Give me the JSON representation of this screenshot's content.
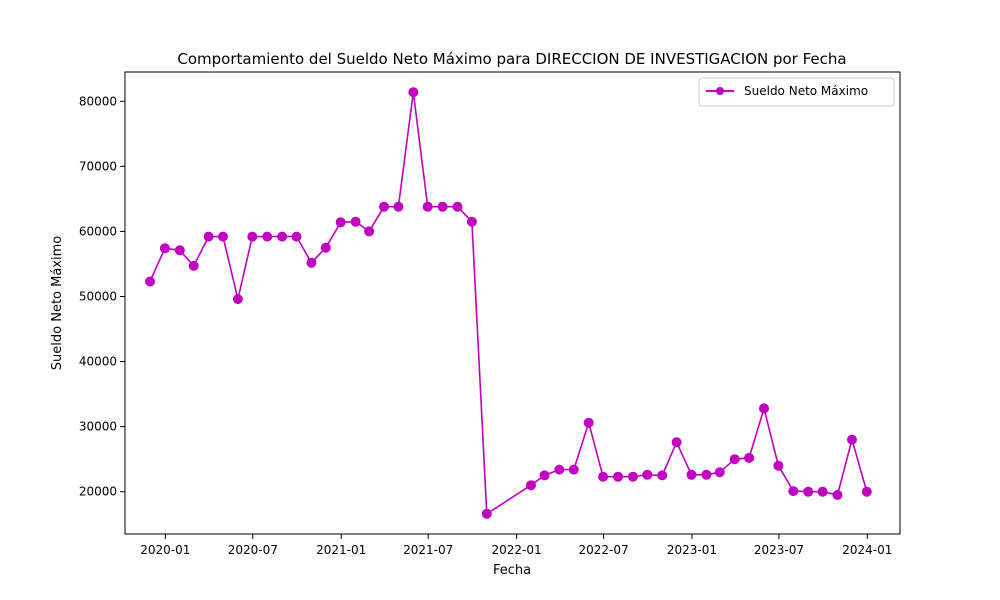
{
  "chart_data": {
    "type": "line",
    "title": "Comportamiento del Sueldo Neto Máximo para DIRECCION DE INVESTIGACION por Fecha",
    "xlabel": "Fecha",
    "ylabel": "Sueldo Neto Máximo",
    "xlim": [
      "2019-10-09",
      "2024-03-09"
    ],
    "ylim": [
      13500,
      84500
    ],
    "x_ticks": [
      "2020-01-01",
      "2020-07-01",
      "2021-01-01",
      "2021-07-01",
      "2022-01-01",
      "2022-07-01",
      "2023-01-01",
      "2023-07-01",
      "2024-01-01"
    ],
    "x_tick_labels": [
      "2020-01",
      "2020-07",
      "2021-01",
      "2021-07",
      "2022-01",
      "2022-07",
      "2023-01",
      "2023-07",
      "2024-01"
    ],
    "y_ticks": [
      20000,
      30000,
      40000,
      50000,
      60000,
      70000,
      80000
    ],
    "y_tick_labels": [
      "20000",
      "30000",
      "40000",
      "50000",
      "60000",
      "70000",
      "80000"
    ],
    "grid": false,
    "legend": {
      "position": "top-right"
    },
    "series": [
      {
        "name": "Sueldo Neto Máximo",
        "color": "#bf00bf",
        "marker": "circle",
        "x": [
          "2019-11-30",
          "2019-12-31",
          "2020-01-31",
          "2020-02-29",
          "2020-03-31",
          "2020-04-30",
          "2020-05-31",
          "2020-06-30",
          "2020-07-31",
          "2020-08-31",
          "2020-09-30",
          "2020-10-31",
          "2020-11-30",
          "2020-12-31",
          "2021-01-31",
          "2021-02-28",
          "2021-03-31",
          "2021-04-30",
          "2021-05-31",
          "2021-06-30",
          "2021-07-31",
          "2021-08-31",
          "2021-09-30",
          "2021-10-31",
          "2022-01-31",
          "2022-02-28",
          "2022-03-31",
          "2022-04-30",
          "2022-05-31",
          "2022-06-30",
          "2022-07-31",
          "2022-08-31",
          "2022-09-30",
          "2022-10-31",
          "2022-11-30",
          "2022-12-31",
          "2023-01-31",
          "2023-02-28",
          "2023-03-31",
          "2023-04-30",
          "2023-05-31",
          "2023-06-30",
          "2023-07-31",
          "2023-08-31",
          "2023-09-30",
          "2023-10-31",
          "2023-11-30",
          "2023-12-31"
        ],
        "values": [
          52300,
          57400,
          57100,
          54700,
          59200,
          59200,
          49600,
          59200,
          59200,
          59200,
          59200,
          55200,
          57500,
          61400,
          61500,
          60000,
          63800,
          63800,
          81400,
          63800,
          63800,
          63800,
          61500,
          16600,
          21000,
          22500,
          23400,
          23400,
          30600,
          22300,
          22300,
          22300,
          22600,
          22500,
          27600,
          22600,
          22600,
          23000,
          25000,
          25200,
          32800,
          24000,
          20100,
          20000,
          20000,
          19500,
          28000,
          20000
        ]
      }
    ]
  }
}
